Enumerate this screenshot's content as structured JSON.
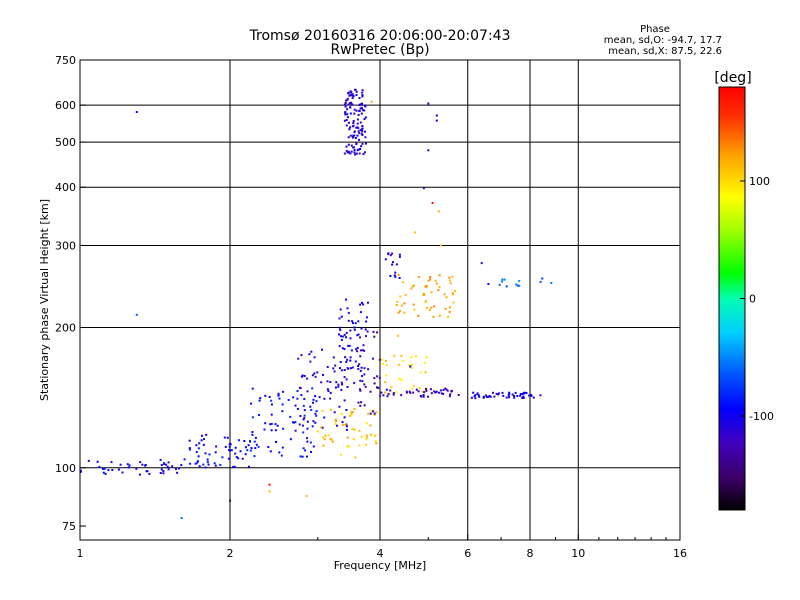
{
  "chart_data": {
    "type": "scatter",
    "title": "Tromsø 20160316 20:06:00-20:07:43",
    "subtitle": "RwPretec (Bp)",
    "xlabel": "Frequency [MHz]",
    "ylabel": "Stationary phase Virtual Height [km]",
    "x_scale": "log",
    "y_scale": "log",
    "xlim": [
      1,
      16
    ],
    "ylim": [
      70,
      750
    ],
    "x_ticks": [
      1,
      2,
      4,
      6,
      8,
      10,
      16
    ],
    "y_ticks": [
      75,
      100,
      200,
      300,
      400,
      500,
      600,
      750
    ],
    "x_gridlines": [
      2,
      4,
      6,
      8,
      10
    ],
    "y_gridlines": [
      100,
      200,
      300,
      400,
      500,
      600
    ],
    "grid": true,
    "stats": {
      "heading": "Phase",
      "line1": "mean, sd,O: -94.7, 17.7",
      "line2": "mean, sd,X:  87.5, 22.6"
    },
    "colorbar": {
      "label": "[deg]",
      "min": -180,
      "max": 180,
      "ticks": [
        100,
        0,
        -100
      ],
      "tick_labels": [
        "100",
        "0",
        "-100"
      ],
      "colormap": "rainbow"
    },
    "clusters": [
      {
        "x_range": [
          1.0,
          1.6
        ],
        "y_range": [
          96,
          104
        ],
        "phase": -100,
        "n": 45
      },
      {
        "x_range": [
          1.6,
          2.2
        ],
        "y_range": [
          100,
          118
        ],
        "phase": -95,
        "n": 60
      },
      {
        "x_range": [
          2.2,
          3.0
        ],
        "y_range": [
          105,
          150
        ],
        "phase": -90,
        "n": 80
      },
      {
        "x_range": [
          2.7,
          3.5
        ],
        "y_range": [
          120,
          180
        ],
        "phase": -110,
        "n": 70
      },
      {
        "x_range": [
          3.3,
          3.8
        ],
        "y_range": [
          150,
          230
        ],
        "phase": -105,
        "n": 70
      },
      {
        "x_range": [
          3.0,
          4.0
        ],
        "y_range": [
          105,
          135
        ],
        "phase": 110,
        "n": 50
      },
      {
        "x_range": [
          3.4,
          3.75
        ],
        "y_range": [
          470,
          650
        ],
        "phase": -110,
        "n": 130
      },
      {
        "x_range": [
          3.6,
          4.0
        ],
        "y_range": [
          130,
          200
        ],
        "phase": -130,
        "n": 30
      },
      {
        "x_range": [
          4.0,
          5.0
        ],
        "y_range": [
          145,
          175
        ],
        "phase": 100,
        "n": 30
      },
      {
        "x_range": [
          4.3,
          5.7
        ],
        "y_range": [
          210,
          260
        ],
        "phase": 120,
        "n": 55
      },
      {
        "x_range": [
          4.0,
          5.8
        ],
        "y_range": [
          142,
          148
        ],
        "phase": -120,
        "n": 45
      },
      {
        "x_range": [
          6.1,
          8.4
        ],
        "y_range": [
          141,
          145
        ],
        "phase": -105,
        "n": 50
      },
      {
        "x_range": [
          6.8,
          9.2
        ],
        "y_range": [
          245,
          255
        ],
        "phase": -60,
        "n": 12
      },
      {
        "x_range": [
          4.1,
          4.4
        ],
        "y_range": [
          255,
          290
        ],
        "phase": -110,
        "n": 15
      }
    ],
    "sparse_points": [
      {
        "x": 1.3,
        "y": 580,
        "phase": -90
      },
      {
        "x": 1.3,
        "y": 213,
        "phase": -60
      },
      {
        "x": 1.6,
        "y": 78,
        "phase": -60
      },
      {
        "x": 2.0,
        "y": 85,
        "phase": -150
      },
      {
        "x": 2.4,
        "y": 92,
        "phase": 170
      },
      {
        "x": 2.4,
        "y": 89,
        "phase": 110
      },
      {
        "x": 2.85,
        "y": 87,
        "phase": 110
      },
      {
        "x": 3.85,
        "y": 610,
        "phase": 120
      },
      {
        "x": 5.0,
        "y": 605,
        "phase": -100
      },
      {
        "x": 5.2,
        "y": 570,
        "phase": -100
      },
      {
        "x": 5.2,
        "y": 556,
        "phase": -100
      },
      {
        "x": 5.0,
        "y": 480,
        "phase": -110
      },
      {
        "x": 4.9,
        "y": 398,
        "phase": -130
      },
      {
        "x": 5.1,
        "y": 370,
        "phase": 170
      },
      {
        "x": 5.25,
        "y": 355,
        "phase": 120
      },
      {
        "x": 4.7,
        "y": 320,
        "phase": 110
      },
      {
        "x": 5.3,
        "y": 300,
        "phase": 110
      },
      {
        "x": 6.4,
        "y": 275,
        "phase": -130
      },
      {
        "x": 6.6,
        "y": 248,
        "phase": -100
      },
      {
        "x": 4.35,
        "y": 192,
        "phase": 110
      },
      {
        "x": 4.6,
        "y": 165,
        "phase": -110
      }
    ]
  }
}
